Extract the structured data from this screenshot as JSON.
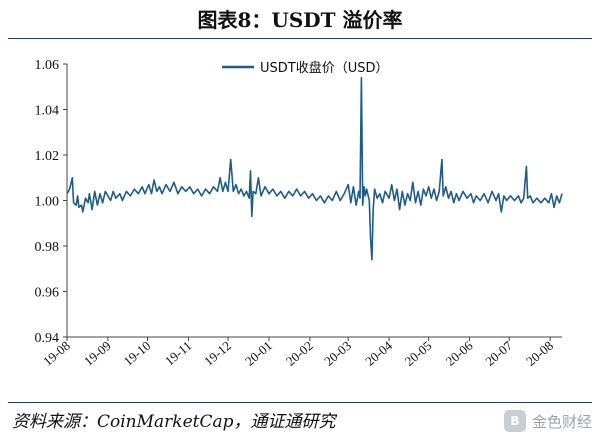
{
  "title": "图表8：USDT 溢价率",
  "source": "资料来源：CoinMarketCap，通证通研究",
  "watermark": {
    "logo_glyph": "B",
    "text": "金色财经"
  },
  "chart_data": {
    "type": "line",
    "legend": "top-center",
    "series_color": "#1f5c86",
    "xlabel": "",
    "ylabel": "",
    "ylim": [
      0.94,
      1.06
    ],
    "yticks": [
      "0.94",
      "0.96",
      "0.98",
      "1.00",
      "1.02",
      "1.04",
      "1.06"
    ],
    "xticks": [
      "19-08",
      "19-09",
      "19-10",
      "19-11",
      "19-12",
      "20-01",
      "20-02",
      "20-03",
      "20-04",
      "20-05",
      "20-06",
      "20-07",
      "20-08"
    ],
    "x_start": "2019-08-01",
    "x_end": "2020-08-10",
    "series": [
      {
        "name": "USDT收盘价（USD）",
        "points": [
          [
            "2019-08-01",
            1.003
          ],
          [
            "2019-08-03",
            1.005
          ],
          [
            "2019-08-05",
            1.01
          ],
          [
            "2019-08-06",
            0.999
          ],
          [
            "2019-08-08",
            0.998
          ],
          [
            "2019-08-09",
            1.002
          ],
          [
            "2019-08-10",
            0.997
          ],
          [
            "2019-08-12",
            0.998
          ],
          [
            "2019-08-13",
            0.995
          ],
          [
            "2019-08-15",
            1.001
          ],
          [
            "2019-08-17",
            0.999
          ],
          [
            "2019-08-18",
            1.003
          ],
          [
            "2019-08-20",
            0.996
          ],
          [
            "2019-08-22",
            1.004
          ],
          [
            "2019-08-24",
            0.998
          ],
          [
            "2019-08-26",
            1.003
          ],
          [
            "2019-08-28",
            0.999
          ],
          [
            "2019-08-30",
            1.004
          ],
          [
            "2019-09-01",
            1.002
          ],
          [
            "2019-09-03",
            1.0
          ],
          [
            "2019-09-05",
            1.004
          ],
          [
            "2019-09-07",
            1.001
          ],
          [
            "2019-09-10",
            1.003
          ],
          [
            "2019-09-12",
            1.0
          ],
          [
            "2019-09-15",
            1.004
          ],
          [
            "2019-09-18",
            1.002
          ],
          [
            "2019-09-21",
            1.005
          ],
          [
            "2019-09-24",
            1.003
          ],
          [
            "2019-09-27",
            1.006
          ],
          [
            "2019-09-29",
            1.003
          ],
          [
            "2019-10-02",
            1.007
          ],
          [
            "2019-10-04",
            1.003
          ],
          [
            "2019-10-06",
            1.009
          ],
          [
            "2019-10-08",
            1.004
          ],
          [
            "2019-10-10",
            1.006
          ],
          [
            "2019-10-12",
            1.003
          ],
          [
            "2019-10-15",
            1.007
          ],
          [
            "2019-10-18",
            1.004
          ],
          [
            "2019-10-21",
            1.008
          ],
          [
            "2019-10-24",
            1.003
          ],
          [
            "2019-10-27",
            1.006
          ],
          [
            "2019-10-30",
            1.004
          ],
          [
            "2019-11-02",
            1.006
          ],
          [
            "2019-11-05",
            1.003
          ],
          [
            "2019-11-08",
            1.005
          ],
          [
            "2019-11-11",
            1.002
          ],
          [
            "2019-11-14",
            1.005
          ],
          [
            "2019-11-17",
            1.003
          ],
          [
            "2019-11-20",
            1.006
          ],
          [
            "2019-11-23",
            1.004
          ],
          [
            "2019-11-25",
            1.01
          ],
          [
            "2019-11-27",
            1.004
          ],
          [
            "2019-11-29",
            1.008
          ],
          [
            "2019-12-01",
            1.004
          ],
          [
            "2019-12-03",
            1.018
          ],
          [
            "2019-12-05",
            1.004
          ],
          [
            "2019-12-07",
            1.007
          ],
          [
            "2019-12-09",
            1.003
          ],
          [
            "2019-12-11",
            1.005
          ],
          [
            "2019-12-13",
            1.002
          ],
          [
            "2019-12-15",
            1.004
          ],
          [
            "2019-12-17",
            1.001
          ],
          [
            "2019-12-18",
            1.013
          ],
          [
            "2019-12-19",
            0.993
          ],
          [
            "2019-12-20",
            1.004
          ],
          [
            "2019-12-22",
            1.003
          ],
          [
            "2019-12-24",
            1.01
          ],
          [
            "2019-12-26",
            1.002
          ],
          [
            "2019-12-29",
            1.006
          ],
          [
            "2020-01-01",
            1.003
          ],
          [
            "2020-01-04",
            1.005
          ],
          [
            "2020-01-07",
            1.002
          ],
          [
            "2020-01-10",
            1.004
          ],
          [
            "2020-01-13",
            1.001
          ],
          [
            "2020-01-16",
            1.004
          ],
          [
            "2020-01-19",
            1.002
          ],
          [
            "2020-01-22",
            1.005
          ],
          [
            "2020-01-25",
            1.002
          ],
          [
            "2020-01-28",
            1.004
          ],
          [
            "2020-01-31",
            1.001
          ],
          [
            "2020-02-03",
            1.003
          ],
          [
            "2020-02-06",
            1.0
          ],
          [
            "2020-02-09",
            1.002
          ],
          [
            "2020-02-12",
            0.999
          ],
          [
            "2020-02-15",
            1.002
          ],
          [
            "2020-02-18",
            1.0
          ],
          [
            "2020-02-21",
            1.004
          ],
          [
            "2020-02-24",
            1.0
          ],
          [
            "2020-02-27",
            1.003
          ],
          [
            "2020-03-01",
            1.007
          ],
          [
            "2020-03-03",
            0.999
          ],
          [
            "2020-03-05",
            1.006
          ],
          [
            "2020-03-07",
            0.998
          ],
          [
            "2020-03-09",
            1.004
          ],
          [
            "2020-03-10",
            1.001
          ],
          [
            "2020-03-11",
            1.054
          ],
          [
            "2020-03-12",
            0.998
          ],
          [
            "2020-03-13",
            1.006
          ],
          [
            "2020-03-14",
            1.002
          ],
          [
            "2020-03-15",
            1.005
          ],
          [
            "2020-03-17",
            1.0
          ],
          [
            "2020-03-18",
            0.983
          ],
          [
            "2020-03-19",
            0.974
          ],
          [
            "2020-03-20",
            0.996
          ],
          [
            "2020-03-21",
            1.005
          ],
          [
            "2020-03-23",
            1.001
          ],
          [
            "2020-03-25",
            1.003
          ],
          [
            "2020-03-27",
            0.999
          ],
          [
            "2020-03-29",
            1.004
          ],
          [
            "2020-04-01",
            1.001
          ],
          [
            "2020-04-03",
            1.007
          ],
          [
            "2020-04-05",
            1.0
          ],
          [
            "2020-04-07",
            1.005
          ],
          [
            "2020-04-09",
            0.996
          ],
          [
            "2020-04-11",
            1.004
          ],
          [
            "2020-04-13",
            0.998
          ],
          [
            "2020-04-15",
            1.003
          ],
          [
            "2020-04-17",
            1.0
          ],
          [
            "2020-04-19",
            1.008
          ],
          [
            "2020-04-21",
            0.999
          ],
          [
            "2020-04-23",
            1.004
          ],
          [
            "2020-04-25",
            0.998
          ],
          [
            "2020-04-27",
            1.005
          ],
          [
            "2020-04-29",
            1.002
          ],
          [
            "2020-05-01",
            1.006
          ],
          [
            "2020-05-03",
            1.001
          ],
          [
            "2020-05-05",
            1.005
          ],
          [
            "2020-05-07",
            1.0
          ],
          [
            "2020-05-09",
            1.004
          ],
          [
            "2020-05-11",
            1.018
          ],
          [
            "2020-05-12",
            1.002
          ],
          [
            "2020-05-14",
            1.006
          ],
          [
            "2020-05-16",
            1.001
          ],
          [
            "2020-05-18",
            1.004
          ],
          [
            "2020-05-20",
            0.999
          ],
          [
            "2020-05-22",
            1.003
          ],
          [
            "2020-05-24",
            1.0
          ],
          [
            "2020-05-27",
            1.004
          ],
          [
            "2020-05-30",
            1.001
          ],
          [
            "2020-06-02",
            1.003
          ],
          [
            "2020-06-04",
            0.999
          ],
          [
            "2020-06-06",
            1.002
          ],
          [
            "2020-06-09",
            1.0
          ],
          [
            "2020-06-12",
            1.003
          ],
          [
            "2020-06-15",
            0.999
          ],
          [
            "2020-06-18",
            1.004
          ],
          [
            "2020-06-21",
            1.0
          ],
          [
            "2020-06-23",
            1.003
          ],
          [
            "2020-06-25",
            0.995
          ],
          [
            "2020-06-27",
            1.002
          ],
          [
            "2020-06-29",
            1.0
          ],
          [
            "2020-07-02",
            1.002
          ],
          [
            "2020-07-05",
            1.0
          ],
          [
            "2020-07-08",
            1.002
          ],
          [
            "2020-07-10",
            0.999
          ],
          [
            "2020-07-12",
            1.001
          ],
          [
            "2020-07-14",
            1.015
          ],
          [
            "2020-07-15",
            1.001
          ],
          [
            "2020-07-17",
            1.002
          ],
          [
            "2020-07-19",
            0.999
          ],
          [
            "2020-07-22",
            1.001
          ],
          [
            "2020-07-25",
            0.999
          ],
          [
            "2020-07-28",
            1.001
          ],
          [
            "2020-07-31",
            0.999
          ],
          [
            "2020-08-02",
            1.003
          ],
          [
            "2020-08-04",
            0.997
          ],
          [
            "2020-08-06",
            1.002
          ],
          [
            "2020-08-08",
            0.999
          ],
          [
            "2020-08-10",
            1.003
          ]
        ]
      }
    ]
  }
}
